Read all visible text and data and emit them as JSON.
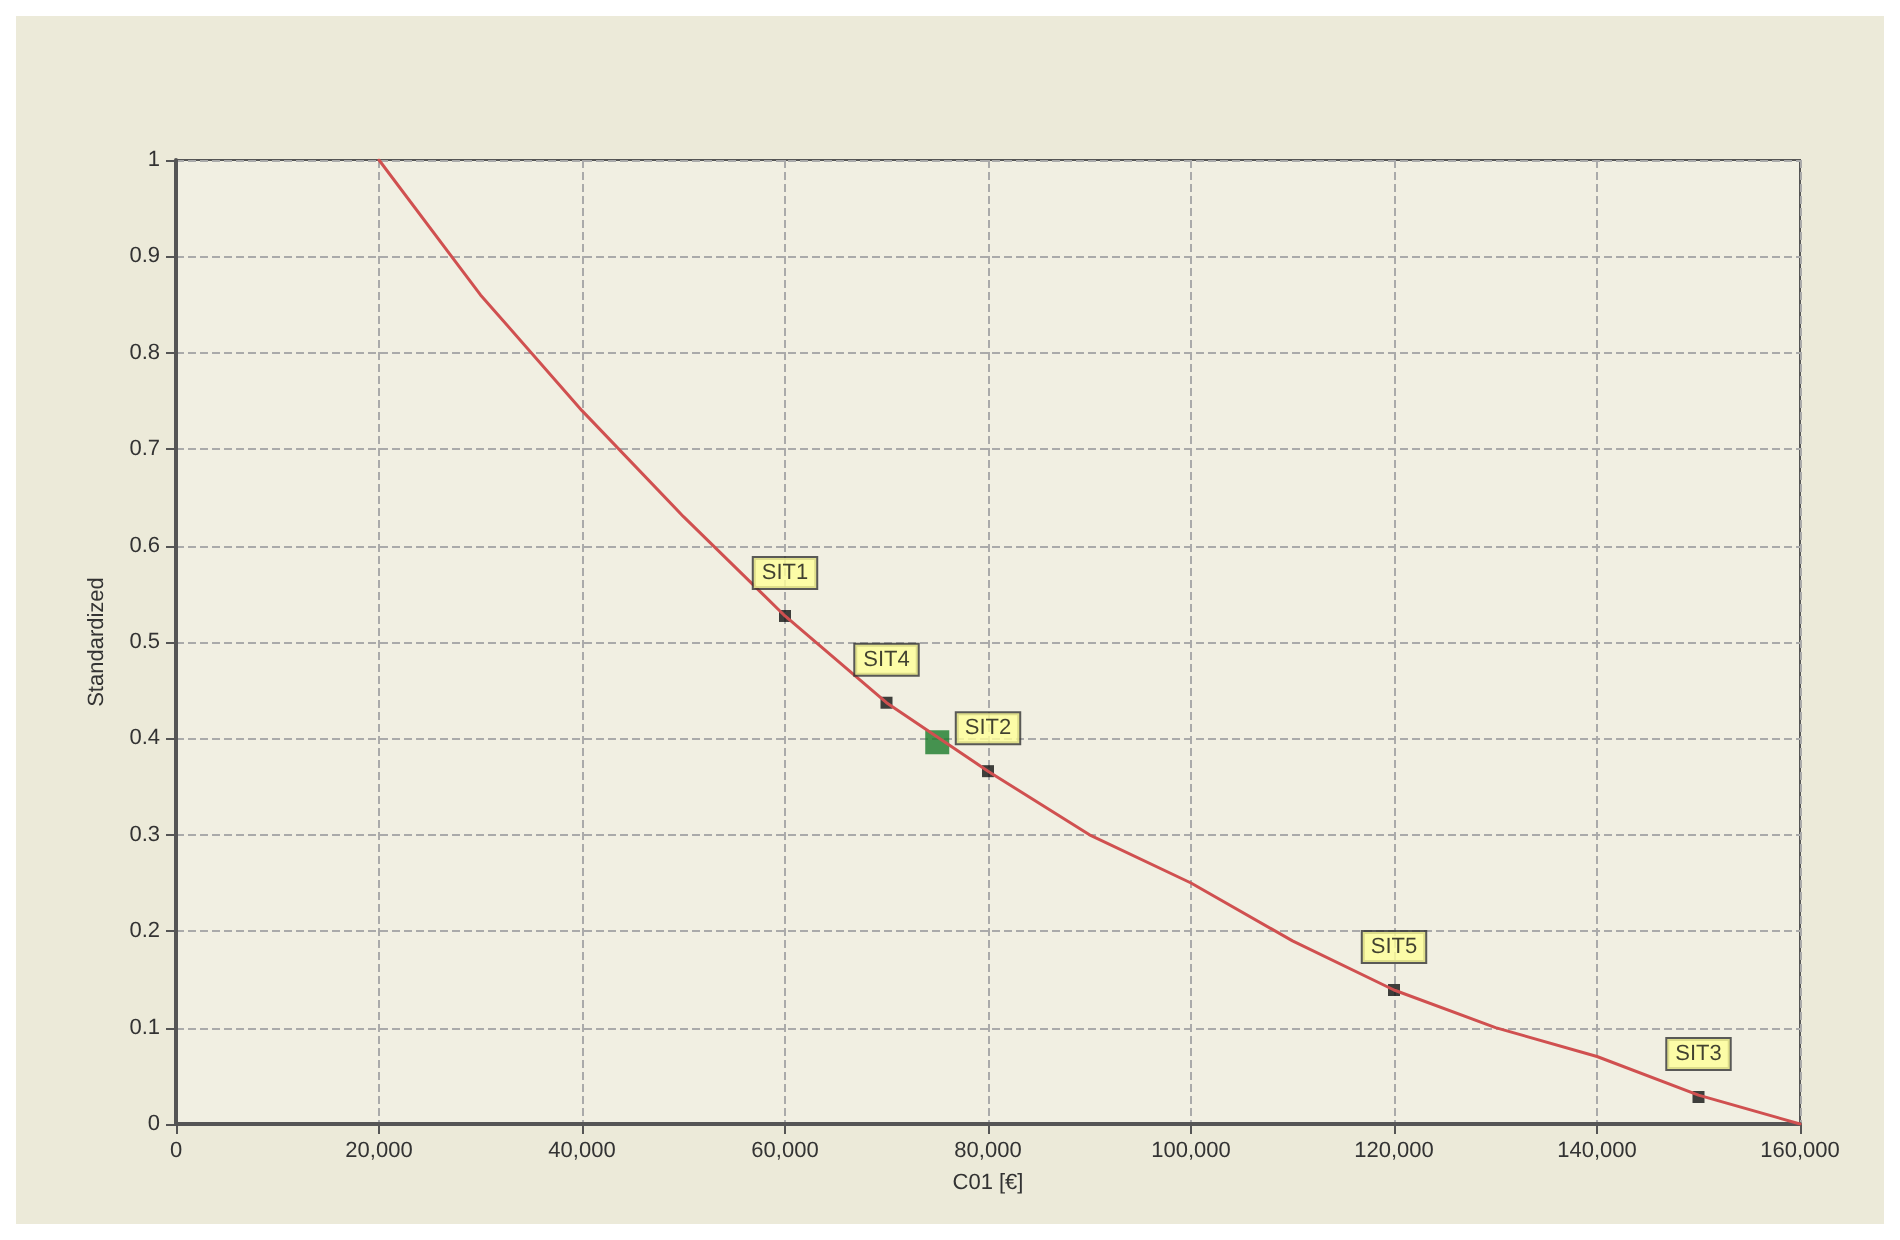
{
  "chart_data": {
    "type": "line",
    "xlabel": "C01 [€]",
    "ylabel": "Standardized",
    "xlim": [
      0,
      160000
    ],
    "xticks": [
      0,
      {
        "value": 20000,
        "label": "20,000"
      },
      {
        "value": 40000,
        "label": "40,000"
      },
      {
        "value": 60000,
        "label": "60,000"
      },
      {
        "value": 80000,
        "label": "80,000"
      },
      {
        "value": 100000,
        "label": "100,000"
      },
      {
        "value": 120000,
        "label": "120,000"
      },
      {
        "value": 140000,
        "label": "140,000"
      },
      {
        "value": 160000,
        "label": "160,000"
      }
    ],
    "ylim": [
      0,
      1
    ],
    "yticks": [
      0,
      0.1,
      0.2,
      0.3,
      0.4,
      0.5,
      0.6,
      0.7,
      0.8,
      0.9,
      1
    ],
    "grid": true,
    "line_style": "solid",
    "series": [
      {
        "marker": "none",
        "color": "#d05050",
        "x": [
          20000,
          30000,
          40000,
          50000,
          60000,
          70000,
          80000,
          90000,
          100000,
          110000,
          120000,
          130000,
          140000,
          150000,
          160000
        ],
        "values": [
          1,
          0.86,
          0.74,
          0.63,
          0.527,
          0.437,
          0.366,
          0.3,
          0.25,
          0.19,
          0.139,
          0.1,
          0.07,
          0.03,
          0
        ]
      },
      {
        "type": "scatter",
        "marker": "square",
        "color": "#111111",
        "x": [
          60000,
          70000,
          80000,
          120000,
          150000
        ],
        "values": [
          0.527,
          0.437,
          0.366,
          0.139,
          0.028
        ]
      },
      {
        "type": "scatter",
        "marker": "square",
        "color": "#1a7a2a",
        "x": [
          75000
        ],
        "values": [
          0.396
        ]
      }
    ],
    "annotations": [
      {
        "text": "SIT1",
        "x": 60000,
        "y": 0.527
      },
      {
        "text": "SIT4",
        "x": 70000,
        "y": 0.437
      },
      {
        "text": "SIT2",
        "x": 80000,
        "y": 0.366
      },
      {
        "text": "SIT5",
        "x": 120000,
        "y": 0.139
      },
      {
        "text": "SIT3",
        "x": 150000,
        "y": 0.028
      }
    ]
  }
}
